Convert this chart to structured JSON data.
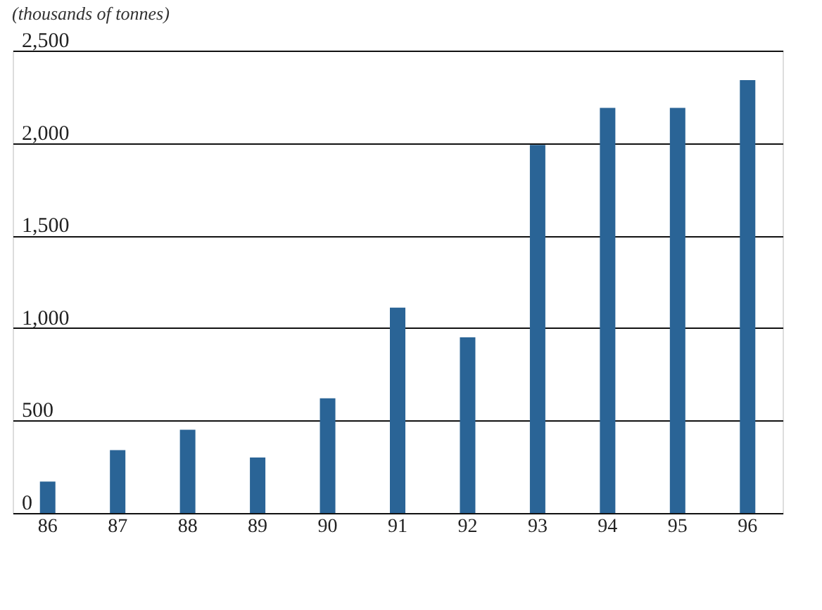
{
  "chart_data": {
    "type": "bar",
    "ylabel": "(thousands of tonnes)",
    "categories": [
      "86",
      "87",
      "88",
      "89",
      "90",
      "91",
      "92",
      "93",
      "94",
      "95",
      "96"
    ],
    "values": [
      170,
      340,
      450,
      300,
      620,
      1110,
      950,
      1990,
      2190,
      2190,
      2340
    ],
    "color": "#2a6496",
    "ylim": [
      0,
      2500
    ],
    "yticks": [
      0,
      500,
      {
        "value": 1000,
        "label": "1,000"
      },
      {
        "value": 1500,
        "label": "1,500"
      },
      {
        "value": 2000,
        "label": "2,000"
      },
      {
        "value": 2500,
        "label": "2,500"
      }
    ],
    "grid": "y"
  }
}
